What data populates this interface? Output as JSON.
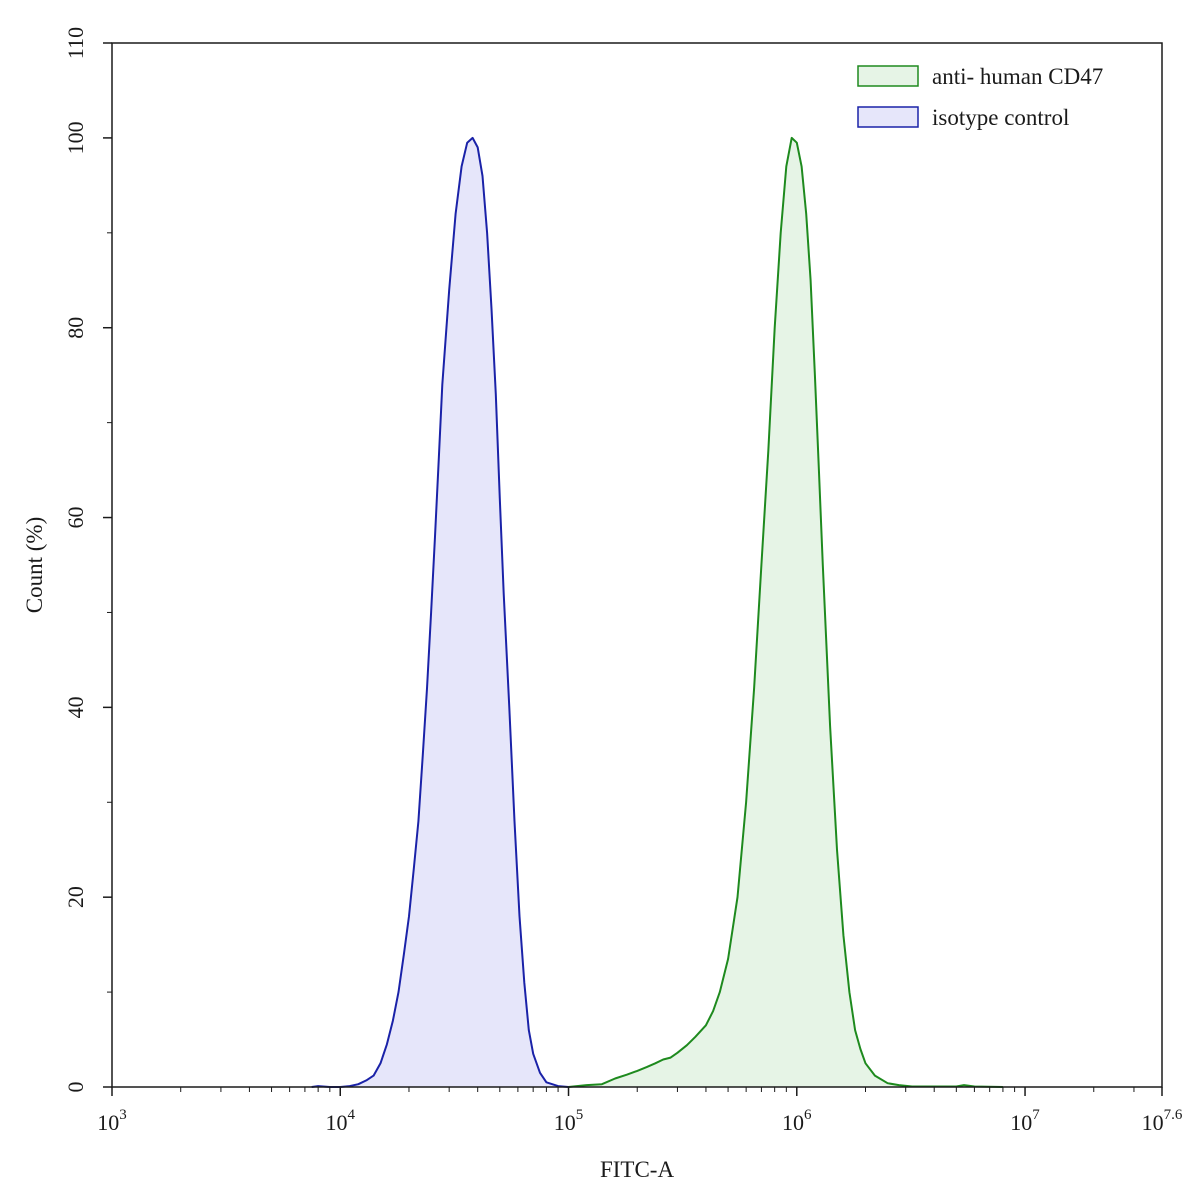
{
  "chart_data": {
    "type": "area",
    "x_scale": "log10",
    "xlim": [
      1000,
      39810717
    ],
    "ylim": [
      0,
      110
    ],
    "grid": false,
    "legend_position": "top-right",
    "xlabel": "FITC-A",
    "ylabel": "Count  (%)",
    "x_ticks": [
      {
        "base": "10",
        "exp": "3"
      },
      {
        "base": "10",
        "exp": "4"
      },
      {
        "base": "10",
        "exp": "5"
      },
      {
        "base": "10",
        "exp": "6"
      },
      {
        "base": "10",
        "exp": "7"
      },
      {
        "base": "10",
        "exp": "7.6"
      }
    ],
    "y_ticks": [
      "0",
      "20",
      "40",
      "60",
      "80",
      "100",
      "110"
    ],
    "series": [
      {
        "name": "anti- human CD47",
        "stroke": "#1e8a1e",
        "fill": "#e6f4e6",
        "points": [
          [
            100000,
            0.0
          ],
          [
            120000,
            0.2
          ],
          [
            140000,
            0.3
          ],
          [
            160000,
            0.9
          ],
          [
            180000,
            1.3
          ],
          [
            200000,
            1.7
          ],
          [
            220000,
            2.1
          ],
          [
            240000,
            2.5
          ],
          [
            260000,
            2.9
          ],
          [
            280000,
            3.1
          ],
          [
            300000,
            3.6
          ],
          [
            330000,
            4.4
          ],
          [
            360000,
            5.3
          ],
          [
            400000,
            6.5
          ],
          [
            430000,
            8.0
          ],
          [
            460000,
            10.0
          ],
          [
            500000,
            13.5
          ],
          [
            550000,
            20.0
          ],
          [
            600000,
            30.0
          ],
          [
            650000,
            42.0
          ],
          [
            700000,
            55.0
          ],
          [
            750000,
            67.0
          ],
          [
            800000,
            80.0
          ],
          [
            850000,
            90.0
          ],
          [
            900000,
            97.0
          ],
          [
            950000,
            100.0
          ],
          [
            1000000,
            99.5
          ],
          [
            1050000,
            97.0
          ],
          [
            1100000,
            92.0
          ],
          [
            1150000,
            85.0
          ],
          [
            1200000,
            75.0
          ],
          [
            1250000,
            65.0
          ],
          [
            1300000,
            55.0
          ],
          [
            1400000,
            38.0
          ],
          [
            1500000,
            25.0
          ],
          [
            1600000,
            16.0
          ],
          [
            1700000,
            10.0
          ],
          [
            1800000,
            6.0
          ],
          [
            1900000,
            4.0
          ],
          [
            2000000,
            2.5
          ],
          [
            2200000,
            1.2
          ],
          [
            2500000,
            0.4
          ],
          [
            2800000,
            0.2
          ],
          [
            3200000,
            0.05
          ],
          [
            5000000,
            0.05
          ],
          [
            5400000,
            0.2
          ],
          [
            6000000,
            0.05
          ],
          [
            8000000,
            0.0
          ]
        ]
      },
      {
        "name": "isotype control",
        "stroke": "#1a22a8",
        "fill": "#e6e6fa",
        "points": [
          [
            7500,
            0.0
          ],
          [
            8000,
            0.1
          ],
          [
            9000,
            0.0
          ],
          [
            10000,
            0.0
          ],
          [
            11000,
            0.1
          ],
          [
            12000,
            0.3
          ],
          [
            13000,
            0.7
          ],
          [
            14000,
            1.2
          ],
          [
            15000,
            2.5
          ],
          [
            16000,
            4.5
          ],
          [
            17000,
            7.0
          ],
          [
            18000,
            10.0
          ],
          [
            19000,
            14.0
          ],
          [
            20000,
            18.0
          ],
          [
            21000,
            23.0
          ],
          [
            22000,
            28.0
          ],
          [
            23000,
            35.0
          ],
          [
            24000,
            42.0
          ],
          [
            25000,
            50.0
          ],
          [
            26000,
            58.0
          ],
          [
            27000,
            66.0
          ],
          [
            28000,
            74.0
          ],
          [
            30000,
            84.0
          ],
          [
            32000,
            92.0
          ],
          [
            34000,
            97.0
          ],
          [
            36000,
            99.5
          ],
          [
            38000,
            100.0
          ],
          [
            40000,
            99.0
          ],
          [
            42000,
            96.0
          ],
          [
            44000,
            90.0
          ],
          [
            46000,
            82.0
          ],
          [
            48000,
            73.0
          ],
          [
            50000,
            62.0
          ],
          [
            52000,
            52.0
          ],
          [
            55000,
            40.0
          ],
          [
            58000,
            28.0
          ],
          [
            61000,
            18.0
          ],
          [
            64000,
            11.0
          ],
          [
            67000,
            6.0
          ],
          [
            70000,
            3.5
          ],
          [
            75000,
            1.5
          ],
          [
            80000,
            0.5
          ],
          [
            90000,
            0.1
          ],
          [
            100000,
            0.0
          ]
        ]
      }
    ]
  }
}
